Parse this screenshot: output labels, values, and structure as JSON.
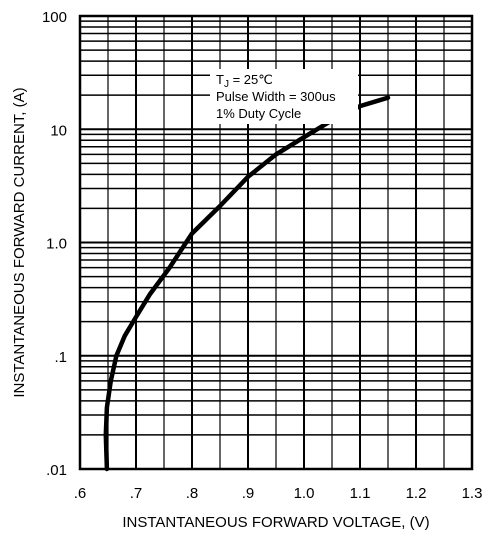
{
  "chart_data": {
    "type": "line",
    "title": "",
    "xlabel": "INSTANTANEOUS FORWARD VOLTAGE, (V)",
    "ylabel": "INSTANTANEOUS FORWARD CURRENT, (A)",
    "xlim": [
      0.6,
      1.3
    ],
    "ylim": [
      0.01,
      100
    ],
    "yscale": "log",
    "grid": true,
    "x_ticks": [
      0.6,
      0.7,
      0.8,
      0.9,
      1.0,
      1.1,
      1.2,
      1.3
    ],
    "x_tick_labels": [
      ".6",
      ".7",
      ".8",
      ".9",
      "1.0",
      "1.1",
      "1.2",
      "1.3"
    ],
    "y_ticks": [
      0.01,
      0.1,
      1,
      10,
      100
    ],
    "y_tick_labels": [
      ".01",
      ".1",
      "1.0",
      "10",
      "100"
    ],
    "annotation": {
      "lines": [
        "TJ = 25℃",
        "Pulse Width = 300us",
        "1% Duty Cycle"
      ],
      "position": "top-right"
    },
    "series": [
      {
        "name": "",
        "x": [
          0.648,
          0.646,
          0.648,
          0.655,
          0.665,
          0.68,
          0.7,
          0.725,
          0.76,
          0.8,
          0.85,
          0.9,
          0.95,
          1.0,
          1.05,
          1.1,
          1.15
        ],
        "y": [
          0.01,
          0.02,
          0.035,
          0.06,
          0.1,
          0.15,
          0.22,
          0.35,
          0.6,
          1.2,
          2.1,
          3.8,
          6.0,
          8.5,
          12.0,
          16.0,
          19.0
        ]
      }
    ]
  }
}
